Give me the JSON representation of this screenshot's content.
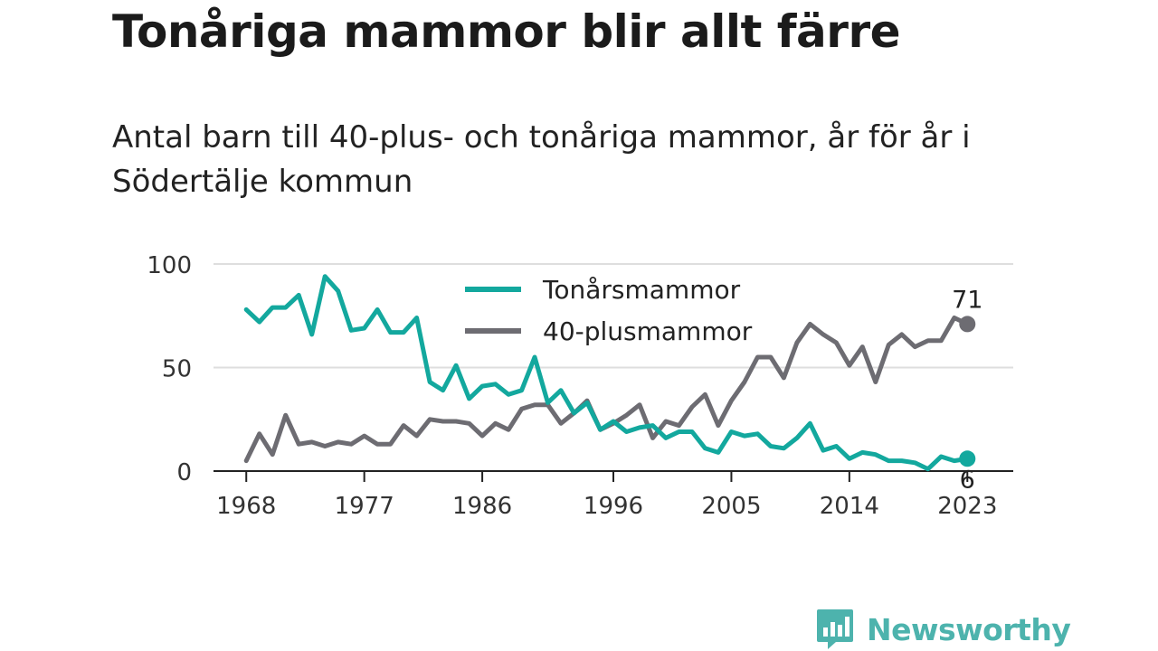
{
  "title": "Tonåriga mammor blir allt färre",
  "subtitle": "Antal barn till 40-plus- och tonåriga mammor, år för år i Södertälje kommun",
  "brand": "Newsworthy",
  "chart_data": {
    "type": "line",
    "x_ticks": [
      1968,
      1977,
      1986,
      1996,
      2005,
      2014,
      2023
    ],
    "y_ticks": [
      0,
      50,
      100
    ],
    "xlim": [
      1965.5,
      2026.5
    ],
    "ylim": [
      0,
      100
    ],
    "grid": true,
    "legend_position": "top-center",
    "series": [
      {
        "name": "Tonårsmammor",
        "color": "#13a89e",
        "end_label": "6",
        "points": [
          [
            1968,
            78
          ],
          [
            1969,
            72
          ],
          [
            1970,
            79
          ],
          [
            1971,
            79
          ],
          [
            1972,
            85
          ],
          [
            1973,
            66
          ],
          [
            1974,
            94
          ],
          [
            1975,
            87
          ],
          [
            1976,
            68
          ],
          [
            1977,
            69
          ],
          [
            1978,
            78
          ],
          [
            1979,
            67
          ],
          [
            1980,
            67
          ],
          [
            1981,
            74
          ],
          [
            1982,
            43
          ],
          [
            1983,
            39
          ],
          [
            1984,
            51
          ],
          [
            1985,
            35
          ],
          [
            1986,
            41
          ],
          [
            1987,
            42
          ],
          [
            1988,
            37
          ],
          [
            1989,
            39
          ],
          [
            1990,
            55
          ],
          [
            1991,
            33
          ],
          [
            1992,
            39
          ],
          [
            1993,
            28
          ],
          [
            1994,
            33
          ],
          [
            1995,
            20
          ],
          [
            1996,
            24
          ],
          [
            1997,
            19
          ],
          [
            1998,
            21
          ],
          [
            1999,
            22
          ],
          [
            2000,
            16
          ],
          [
            2001,
            19
          ],
          [
            2002,
            19
          ],
          [
            2003,
            11
          ],
          [
            2004,
            9
          ],
          [
            2005,
            19
          ],
          [
            2006,
            17
          ],
          [
            2007,
            18
          ],
          [
            2008,
            12
          ],
          [
            2009,
            11
          ],
          [
            2010,
            16
          ],
          [
            2011,
            23
          ],
          [
            2012,
            10
          ],
          [
            2013,
            12
          ],
          [
            2014,
            6
          ],
          [
            2015,
            9
          ],
          [
            2016,
            8
          ],
          [
            2017,
            5
          ],
          [
            2018,
            5
          ],
          [
            2019,
            4
          ],
          [
            2020,
            1
          ],
          [
            2021,
            7
          ],
          [
            2022,
            5
          ],
          [
            2023,
            6
          ]
        ]
      },
      {
        "name": "40-plusmammor",
        "color": "#6d6c72",
        "end_label": "71",
        "points": [
          [
            1968,
            5
          ],
          [
            1969,
            18
          ],
          [
            1970,
            8
          ],
          [
            1971,
            27
          ],
          [
            1972,
            13
          ],
          [
            1973,
            14
          ],
          [
            1974,
            12
          ],
          [
            1975,
            14
          ],
          [
            1976,
            13
          ],
          [
            1977,
            17
          ],
          [
            1978,
            13
          ],
          [
            1979,
            13
          ],
          [
            1980,
            22
          ],
          [
            1981,
            17
          ],
          [
            1982,
            25
          ],
          [
            1983,
            24
          ],
          [
            1984,
            24
          ],
          [
            1985,
            23
          ],
          [
            1986,
            17
          ],
          [
            1987,
            23
          ],
          [
            1988,
            20
          ],
          [
            1989,
            30
          ],
          [
            1990,
            32
          ],
          [
            1991,
            32
          ],
          [
            1992,
            23
          ],
          [
            1993,
            28
          ],
          [
            1994,
            34
          ],
          [
            1995,
            20
          ],
          [
            1996,
            23
          ],
          [
            1997,
            27
          ],
          [
            1998,
            32
          ],
          [
            1999,
            16
          ],
          [
            2000,
            24
          ],
          [
            2001,
            22
          ],
          [
            2002,
            31
          ],
          [
            2003,
            37
          ],
          [
            2004,
            22
          ],
          [
            2005,
            34
          ],
          [
            2006,
            43
          ],
          [
            2007,
            55
          ],
          [
            2008,
            55
          ],
          [
            2009,
            45
          ],
          [
            2010,
            62
          ],
          [
            2011,
            71
          ],
          [
            2012,
            66
          ],
          [
            2013,
            62
          ],
          [
            2014,
            51
          ],
          [
            2015,
            60
          ],
          [
            2016,
            43
          ],
          [
            2017,
            61
          ],
          [
            2018,
            66
          ],
          [
            2019,
            60
          ],
          [
            2020,
            63
          ],
          [
            2021,
            63
          ],
          [
            2022,
            74
          ],
          [
            2023,
            71
          ]
        ]
      }
    ]
  }
}
